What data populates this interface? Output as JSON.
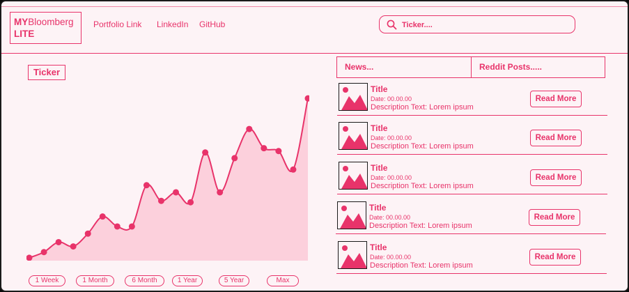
{
  "header": {
    "logo_bold": "MY",
    "logo_rest": "Bloomberg",
    "logo_line2": "LITE",
    "nav": [
      "Portfolio Link",
      "LinkedIn",
      "GitHub"
    ],
    "search_placeholder": "Ticker...."
  },
  "main": {
    "ticker_label": "Ticker",
    "ranges": [
      "1 Week",
      "1 Month",
      "6 Month",
      "1 Year",
      "5 Year",
      "Max"
    ]
  },
  "sidebar": {
    "tabs": [
      "News...",
      "Reddit Posts....."
    ],
    "news_items": [
      {
        "title": "Title",
        "date": "Date: 00.00.00",
        "description": "Description Text: Lorem ipsum",
        "button": "Read More"
      },
      {
        "title": "Title",
        "date": "Date: 00.00.00",
        "description": "Description Text: Lorem ipsum",
        "button": "Read More"
      },
      {
        "title": "Title",
        "date": "Date: 00.00.00",
        "description": "Description Text: Lorem ipsum",
        "button": "Read More"
      },
      {
        "title": "Title",
        "date": "Date: 00.00.00",
        "description": "Description Text: Lorem ipsum",
        "button": "Read More"
      },
      {
        "title": "Title",
        "date": "Date: 00.00.00",
        "description": "Description Text: Lorem ipsum",
        "button": "Read More"
      }
    ]
  },
  "chart_data": {
    "type": "area",
    "x": [
      0,
      1,
      2,
      3,
      4,
      5,
      6,
      7,
      8,
      9,
      10,
      11,
      12,
      13,
      14,
      15,
      16,
      17,
      18,
      19
    ],
    "values": [
      4,
      12,
      26,
      20,
      38,
      62,
      48,
      48,
      106,
      84,
      96,
      82,
      152,
      96,
      144,
      185,
      158,
      154,
      128,
      228
    ],
    "ylim": [
      0,
      235
    ],
    "grid": false
  },
  "colors": {
    "accent": "#e8336a",
    "fill": "#fcd0dc",
    "background": "#fdf3f6"
  }
}
